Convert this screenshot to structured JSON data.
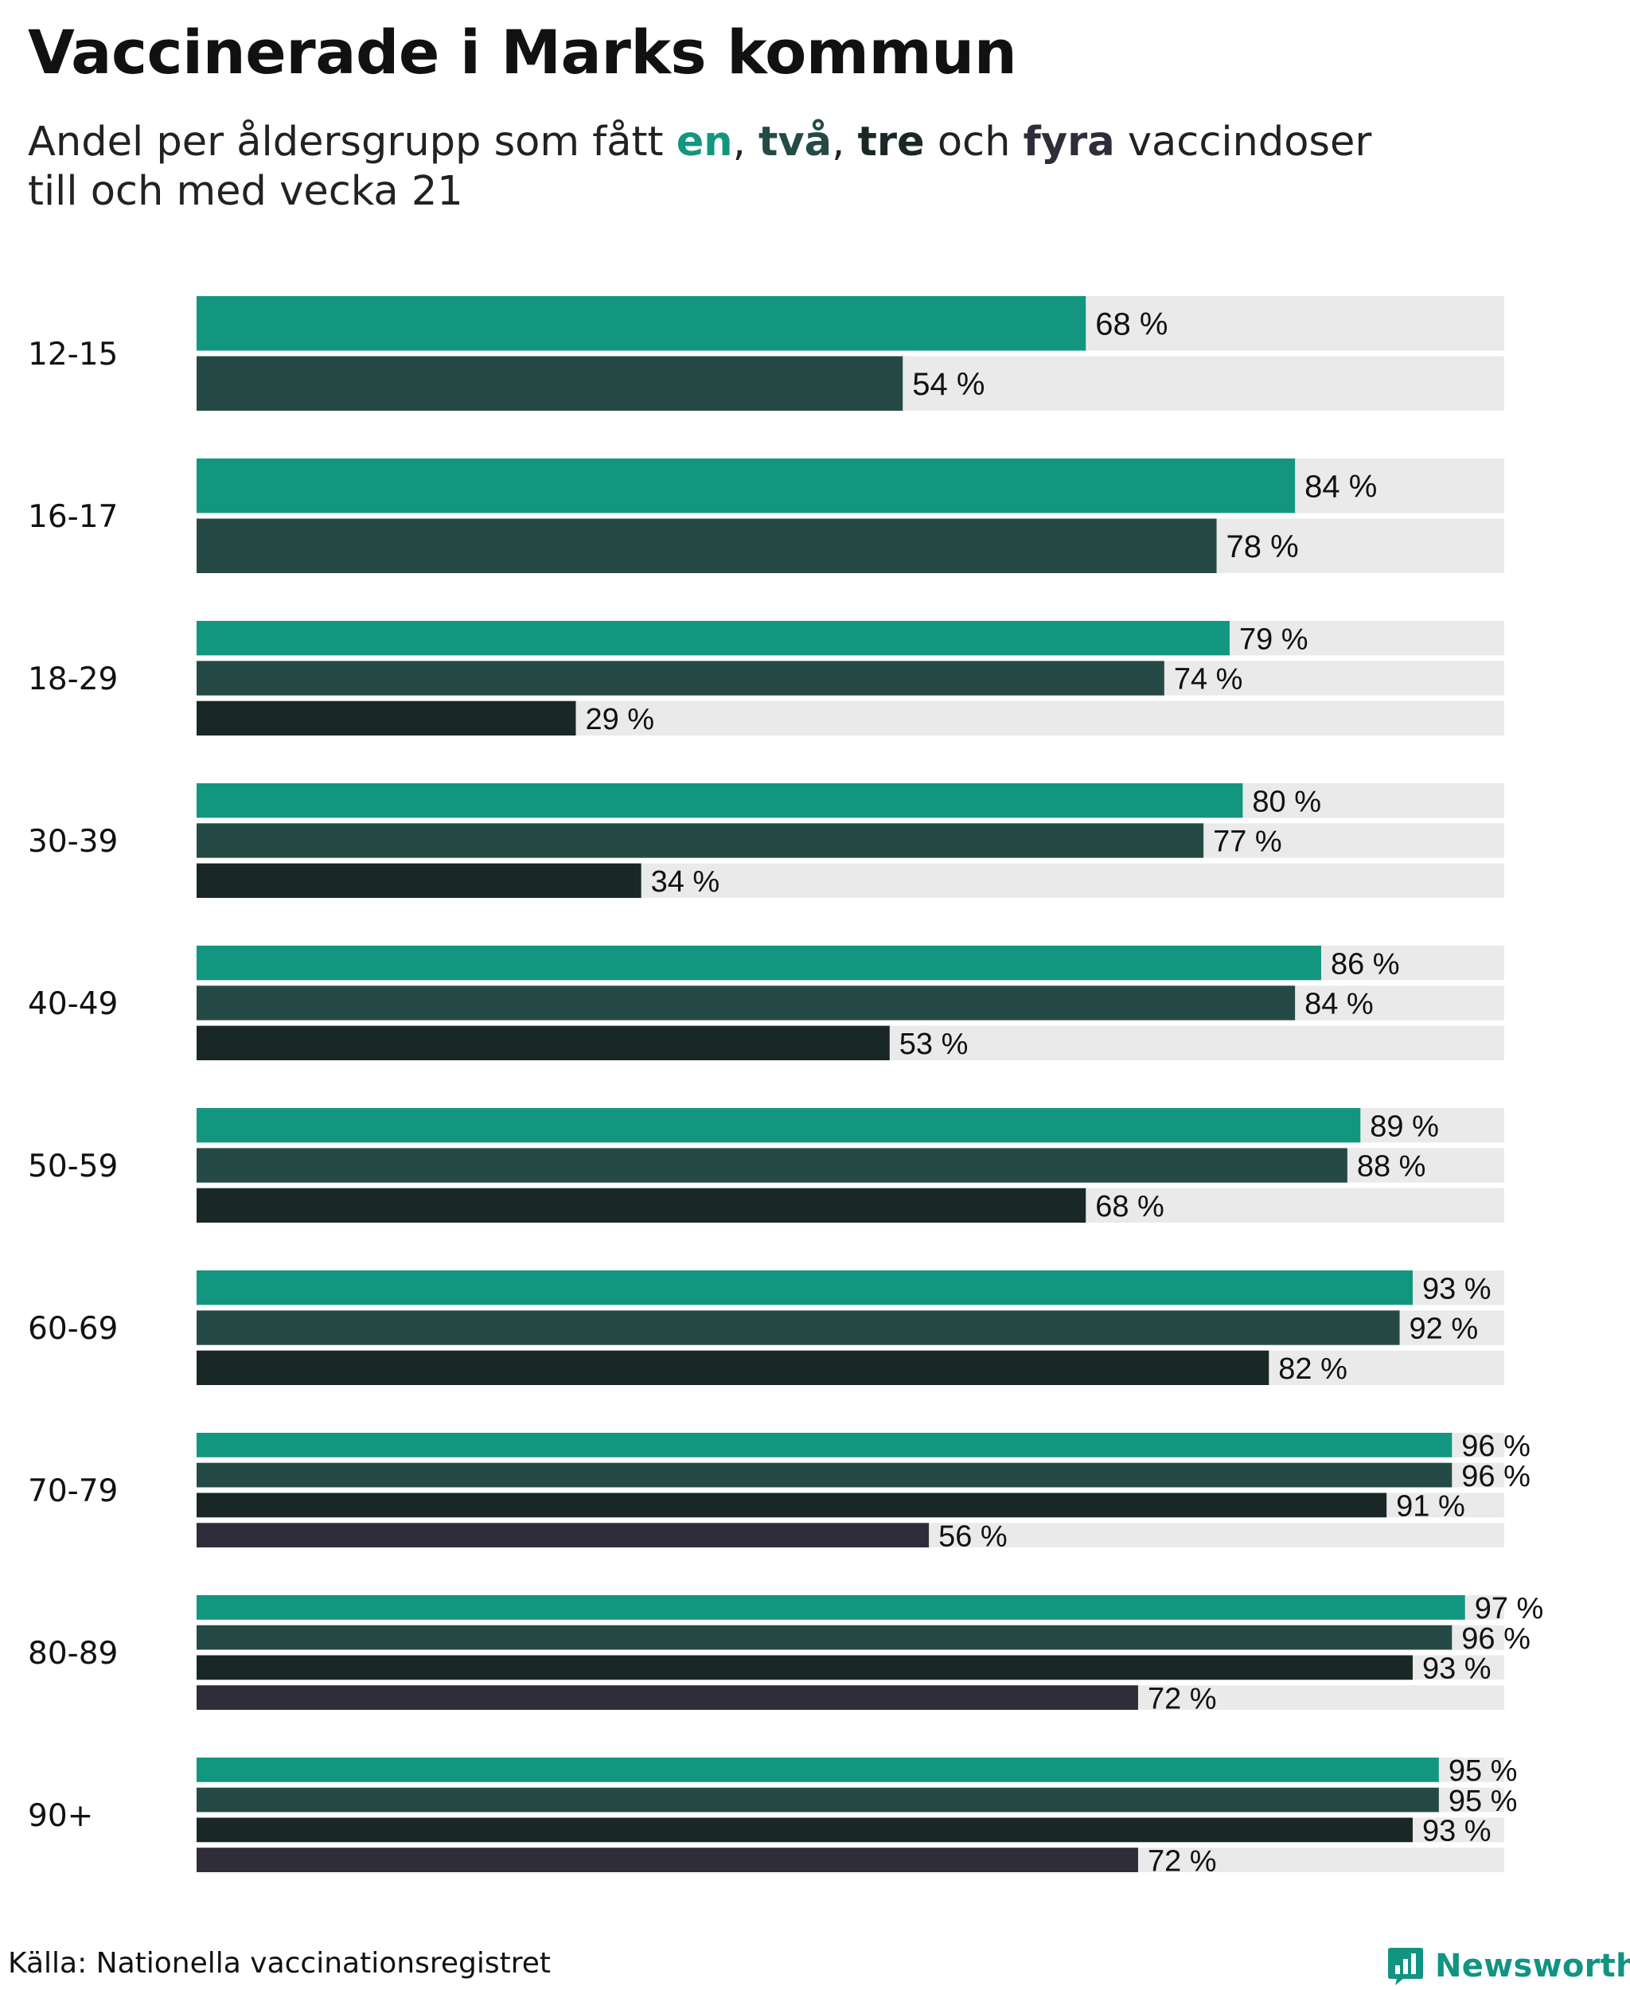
{
  "title": "Vaccinerade i Marks kommun",
  "subtitle": {
    "prefix": "Andel per åldersgrupp som fått ",
    "k1": "en",
    "sep1": ", ",
    "k2": "två",
    "sep2": ", ",
    "k3": "tre",
    "sep3": " och ",
    "k4": "fyra",
    "suffix": " vaccindoser",
    "line2": "till och med vecka 21"
  },
  "source": "Källa: Nationella vaccinationsregistret",
  "brand": {
    "name": "Newsworthy",
    "icon": "bar-chart-logo-icon"
  },
  "colors": {
    "dose1": "#13967F",
    "dose2": "#254A46",
    "dose3": "#192826",
    "dose4": "#2F2D3A",
    "track": "#EAEAEA"
  },
  "chart_data": {
    "type": "bar",
    "orientation": "horizontal",
    "title": "Vaccinerade i Marks kommun",
    "xlim": [
      0,
      100
    ],
    "value_suffix": " %",
    "categories": [
      "12-15",
      "16-17",
      "18-29",
      "30-39",
      "40-49",
      "50-59",
      "60-69",
      "70-79",
      "80-89",
      "90+"
    ],
    "series": [
      {
        "name": "en",
        "values": [
          68,
          84,
          79,
          80,
          86,
          89,
          93,
          96,
          97,
          95
        ]
      },
      {
        "name": "två",
        "values": [
          54,
          78,
          74,
          77,
          84,
          88,
          92,
          96,
          96,
          95
        ]
      },
      {
        "name": "tre",
        "values": [
          null,
          null,
          29,
          34,
          53,
          68,
          82,
          91,
          93,
          93
        ]
      },
      {
        "name": "fyra",
        "values": [
          null,
          null,
          null,
          null,
          null,
          null,
          null,
          56,
          72,
          72
        ]
      }
    ]
  }
}
